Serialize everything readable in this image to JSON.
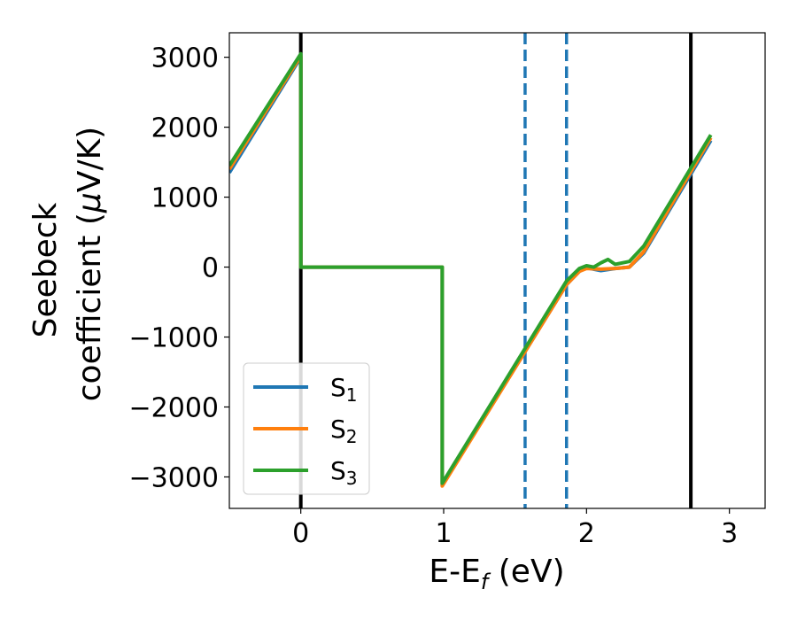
{
  "chart_data": {
    "type": "line",
    "xlabel": "E-E",
    "xlabel_subscript": "f",
    "xlabel_unit": " (eV)",
    "ylabel_line1": "Seebeck",
    "ylabel_line2_text": "coefficient  (",
    "ylabel_line2_mu": "μ",
    "ylabel_line2_unit": "V/K)",
    "xlim": [
      -0.5,
      3.25
    ],
    "ylim": [
      -3450,
      3350
    ],
    "xticks": [
      0,
      1,
      2,
      3
    ],
    "xtick_labels": [
      "0",
      "1",
      "2",
      "3"
    ],
    "yticks": [
      -3000,
      -2000,
      -1000,
      0,
      1000,
      2000,
      3000
    ],
    "ytick_labels": [
      "−3000",
      "−2000",
      "−1000",
      "0",
      "1000",
      "2000",
      "3000"
    ],
    "grid": false,
    "legend_position": "lower-left",
    "vlines": [
      {
        "x": 0.0,
        "color": "#000000",
        "style": "solid"
      },
      {
        "x": 1.57,
        "color": "#1f77b4",
        "style": "dashed"
      },
      {
        "x": 1.86,
        "color": "#1f77b4",
        "style": "dashed"
      },
      {
        "x": 2.73,
        "color": "#000000",
        "style": "solid"
      }
    ],
    "series": [
      {
        "name": "S",
        "subscript": "1",
        "color": "#1f77b4",
        "x": [
          -0.5,
          0.0,
          0.0,
          0.99,
          0.99,
          1.86,
          1.95,
          2.0,
          2.1,
          2.2,
          2.3,
          2.4,
          2.87
        ],
        "y": [
          1350,
          3000,
          0,
          0,
          -3120,
          -250,
          -60,
          -10,
          -50,
          -20,
          0,
          200,
          1810
        ]
      },
      {
        "name": "S",
        "subscript": "2",
        "color": "#ff7f0e",
        "x": [
          -0.5,
          0.0,
          0.0,
          0.99,
          0.99,
          1.86,
          1.95,
          2.0,
          2.1,
          2.2,
          2.3,
          2.4,
          2.87
        ],
        "y": [
          1400,
          3020,
          0,
          0,
          -3130,
          -250,
          -60,
          -20,
          -30,
          -20,
          0,
          220,
          1850
        ]
      },
      {
        "name": "S",
        "subscript": "3",
        "color": "#2ca02c",
        "x": [
          -0.5,
          0.0,
          0.0,
          0.99,
          0.99,
          1.86,
          1.95,
          2.0,
          2.05,
          2.1,
          2.15,
          2.2,
          2.3,
          2.4,
          2.87
        ],
        "y": [
          1450,
          3050,
          0,
          0,
          -3090,
          -200,
          -20,
          20,
          0,
          60,
          110,
          40,
          80,
          300,
          1890
        ]
      }
    ]
  }
}
